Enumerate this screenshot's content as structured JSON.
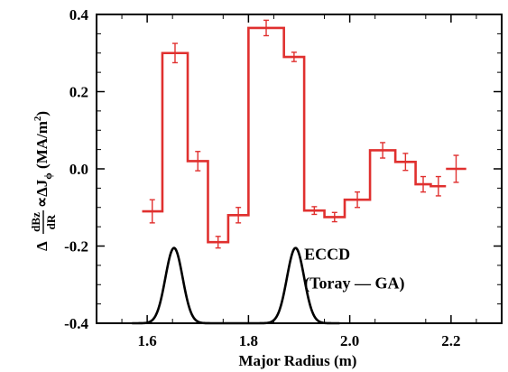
{
  "chart_data": {
    "type": "line",
    "xlabel": "Major Radius (m)",
    "ylabel": {
      "delta": "Δ",
      "frac_num": "dBz",
      "frac_den": "dR",
      "prop": "∝ΔJ",
      "subscript": "ϕ",
      "units_open": " (MA/m",
      "units_exp": "2",
      "units_close": ")"
    },
    "xlim": [
      1.5,
      2.3
    ],
    "ylim": [
      -0.4,
      0.4
    ],
    "x_ticks": [
      1.6,
      1.8,
      2.0,
      2.2
    ],
    "x_tick_labels": [
      "1.6",
      "1.8",
      "2.0",
      "2.2"
    ],
    "y_ticks": [
      -0.4,
      -0.2,
      0.0,
      0.2,
      0.4
    ],
    "y_tick_labels": [
      "-0.4",
      "-0.2",
      "0.0",
      "0.2",
      "0.4"
    ],
    "grid": false,
    "series": [
      {
        "color": "#e0302f",
        "style": "step",
        "bins": [
          {
            "x0": 1.59,
            "x1": 1.63,
            "y": -0.11,
            "err": 0.03
          },
          {
            "x0": 1.63,
            "x1": 1.68,
            "y": 0.3,
            "err": 0.025
          },
          {
            "x0": 1.68,
            "x1": 1.72,
            "y": 0.02,
            "err": 0.025
          },
          {
            "x0": 1.72,
            "x1": 1.76,
            "y": -0.19,
            "err": 0.015
          },
          {
            "x0": 1.76,
            "x1": 1.8,
            "y": -0.12,
            "err": 0.02
          },
          {
            "x0": 1.8,
            "x1": 1.87,
            "y": 0.365,
            "err": 0.02
          },
          {
            "x0": 1.87,
            "x1": 1.91,
            "y": 0.29,
            "err": 0.012
          },
          {
            "x0": 1.91,
            "x1": 1.95,
            "y": -0.108,
            "err": 0.01
          },
          {
            "x0": 1.95,
            "x1": 1.99,
            "y": -0.125,
            "err": 0.012
          },
          {
            "x0": 1.99,
            "x1": 2.04,
            "y": -0.08,
            "err": 0.02
          },
          {
            "x0": 2.04,
            "x1": 2.09,
            "y": 0.048,
            "err": 0.02
          },
          {
            "x0": 2.09,
            "x1": 2.13,
            "y": 0.018,
            "err": 0.022
          },
          {
            "x0": 2.13,
            "x1": 2.16,
            "y": -0.04,
            "err": 0.02
          },
          {
            "x0": 2.16,
            "x1": 2.19,
            "y": -0.045,
            "err": 0.025
          },
          {
            "x0": 2.19,
            "x1": 2.23,
            "y": 0.0,
            "err": 0.035
          }
        ],
        "gaps_after": [
          13
        ]
      },
      {
        "color": "#000000",
        "style": "line",
        "peaks": [
          {
            "center": 1.653,
            "width": 0.017,
            "baseline": -0.4,
            "peak": -0.205
          },
          {
            "center": 1.893,
            "width": 0.017,
            "baseline": -0.4,
            "peak": -0.205
          }
        ],
        "x_range": [
          1.57,
          1.98
        ]
      }
    ],
    "annotations": [
      {
        "text": "ECCD",
        "x": 1.91,
        "y": -0.235
      },
      {
        "text": "(Toray — GA)",
        "x": 1.91,
        "y": -0.31
      }
    ]
  }
}
